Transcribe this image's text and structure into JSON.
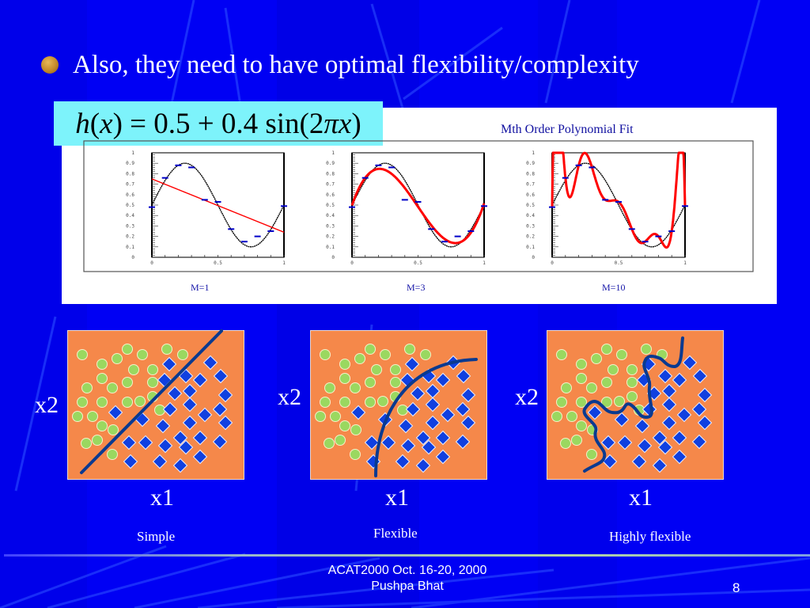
{
  "slide": {
    "bullet": "Also, they need to have optimal flexibility/complexity",
    "formula": {
      "lhs": "h",
      "var": "x",
      "text": "= 0.5 + 0.4 sin(2",
      "pi": "π",
      "end": ")"
    },
    "page_number": "8"
  },
  "footer": {
    "line1": "ACAT2000  Oct. 16-20, 2000",
    "line2": "Pushpa Bhat"
  },
  "chart_data": {
    "type": "line",
    "title": "Mth Order Polynomial Fit",
    "true_function": "h(x) = 0.5 + 0.4 sin(2πx)",
    "xlim": [
      0,
      1
    ],
    "ylim": [
      0,
      1
    ],
    "x_ticks": [
      "0",
      "0.5",
      "1"
    ],
    "y_ticks": [
      "0",
      "0.1",
      "0.2",
      "0.3",
      "0.4",
      "0.5",
      "0.6",
      "0.7",
      "0.8",
      "0.9",
      "1"
    ],
    "data_points": {
      "x": [
        0,
        0.1,
        0.2,
        0.3,
        0.4,
        0.5,
        0.6,
        0.7,
        0.8,
        0.9,
        1.0
      ],
      "y": [
        0.48,
        0.76,
        0.88,
        0.86,
        0.55,
        0.53,
        0.27,
        0.15,
        0.2,
        0.25,
        0.49
      ]
    },
    "panels": [
      {
        "label": "M=1",
        "order": 1,
        "fit_endpoints": [
          0.75,
          0.24
        ]
      },
      {
        "label": "M=3",
        "order": 3
      },
      {
        "label": "M=10",
        "order": 10
      }
    ],
    "colors": {
      "true": "#000000",
      "fit": "#ff0000",
      "points": "#0000c8"
    }
  },
  "classifiers": {
    "colors": {
      "panel": "#f5884a",
      "circle": "#9ad860",
      "diamond": "#1040e0",
      "boundary": "#0a3a90"
    },
    "x_axis_label": "x1",
    "y_axis_label": "x2",
    "panels": [
      {
        "caption": "Simple",
        "boundary": "line"
      },
      {
        "caption": "Flexible",
        "boundary": "curve"
      },
      {
        "caption": "Highly flexible",
        "boundary": "wiggly"
      }
    ]
  }
}
